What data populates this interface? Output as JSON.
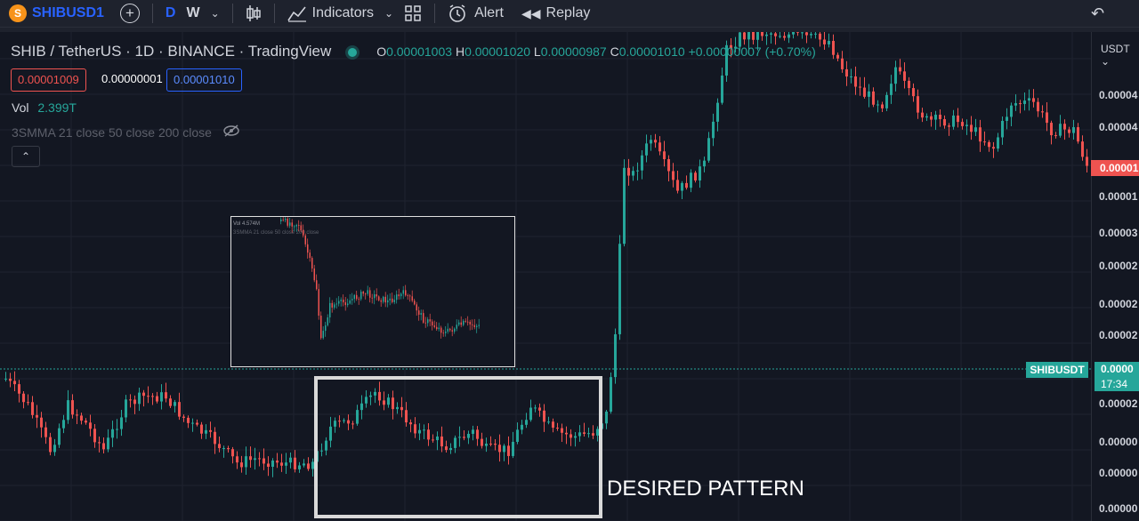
{
  "toolbar": {
    "symbol": "SHIBUSD1",
    "interval_d": "D",
    "interval_w": "W",
    "indicators_label": "Indicators",
    "alert_label": "Alert",
    "replay_label": "Replay"
  },
  "legend": {
    "title": "SHIB / TetherUS · 1D · BINANCE · TradingView",
    "o_label": "O",
    "o_value": "0.00001003",
    "h_label": "H",
    "h_value": "0.00001020",
    "l_label": "L",
    "l_value": "0.00000987",
    "c_label": "C",
    "c_value": "0.00001010",
    "change": "+0.00000007 (+0.70%)",
    "bid": "0.00001009",
    "spread": "0.00000001",
    "ask": "0.00001010",
    "vol_label": "Vol",
    "vol_value": "2.399T",
    "ma_label": "3SMMA 21 close 50 close 200 close"
  },
  "inset": {
    "vol_text": "Vol 4.574M",
    "ma_text": "3SMMA 21 close 50 close 200 close"
  },
  "price_scale": {
    "currency": "USDT",
    "labels": [
      "0.00004",
      "0.00004",
      "0.00001",
      "0.00003",
      "0.00002",
      "0.00002",
      "0.00002",
      "0.00002",
      "0.00000",
      "0.00000",
      "0.00000",
      "0.00000",
      "0.00000"
    ],
    "symbol_tag": "SHIBUSDT",
    "current_price_label": "0.0000",
    "countdown": "17:34",
    "red_label": "0.00001"
  },
  "annotation": {
    "desired_pattern": "DESIRED PATTERN"
  },
  "colors": {
    "up": "#26a69a",
    "down": "#ef5350",
    "background": "#131722",
    "toolbar_bg": "#1e222d",
    "accent": "#2962ff"
  }
}
